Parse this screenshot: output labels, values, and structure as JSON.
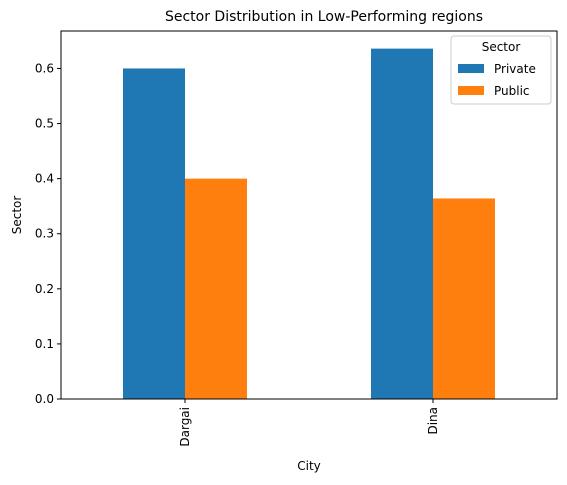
{
  "chart_data": {
    "type": "bar",
    "title": "Sector Distribution in Low-Performing regions",
    "xlabel": "City",
    "ylabel": "Sector",
    "categories": [
      "Dargai",
      "Dina"
    ],
    "series": [
      {
        "name": "Private",
        "values": [
          0.6,
          0.636
        ]
      },
      {
        "name": "Public",
        "values": [
          0.4,
          0.364
        ]
      }
    ],
    "ylim": [
      0,
      0.668
    ],
    "yticks": [
      0.0,
      0.1,
      0.2,
      0.3,
      0.4,
      0.5,
      0.6
    ],
    "ytick_labels": [
      "0.0",
      "0.1",
      "0.2",
      "0.3",
      "0.4",
      "0.5",
      "0.6"
    ],
    "legend": {
      "title": "Sector",
      "placement": "top-right"
    },
    "colors": {
      "Private": "#1f77b4",
      "Public": "#ff7f0e"
    },
    "grid": false
  }
}
